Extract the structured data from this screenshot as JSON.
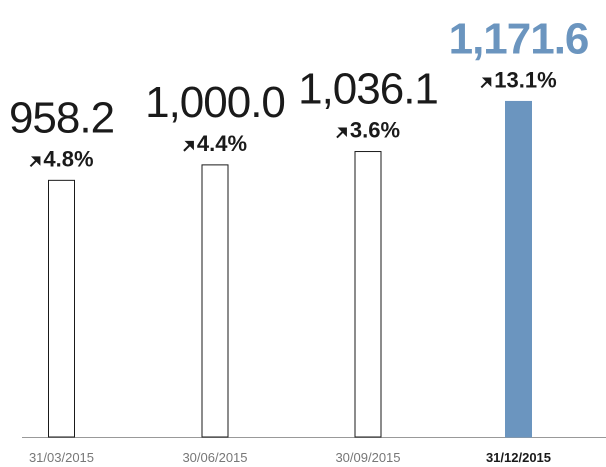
{
  "chart_data": {
    "type": "bar",
    "categories": [
      "31/03/2015",
      "30/06/2015",
      "30/09/2015",
      "31/12/2015"
    ],
    "values": [
      958.2,
      1000.0,
      1036.1,
      1171.6
    ],
    "value_labels": [
      "958.2",
      "1,000.0",
      "1,036.1",
      "1,171.6"
    ],
    "annotations": [
      "4.8%",
      "4.4%",
      "3.6%",
      "13.1%"
    ],
    "colors": [
      "#ffffff",
      "#ffffff",
      "#ffffff",
      "#6b95bf"
    ],
    "highlight": 3,
    "ylim": [
      264,
      1400
    ]
  }
}
